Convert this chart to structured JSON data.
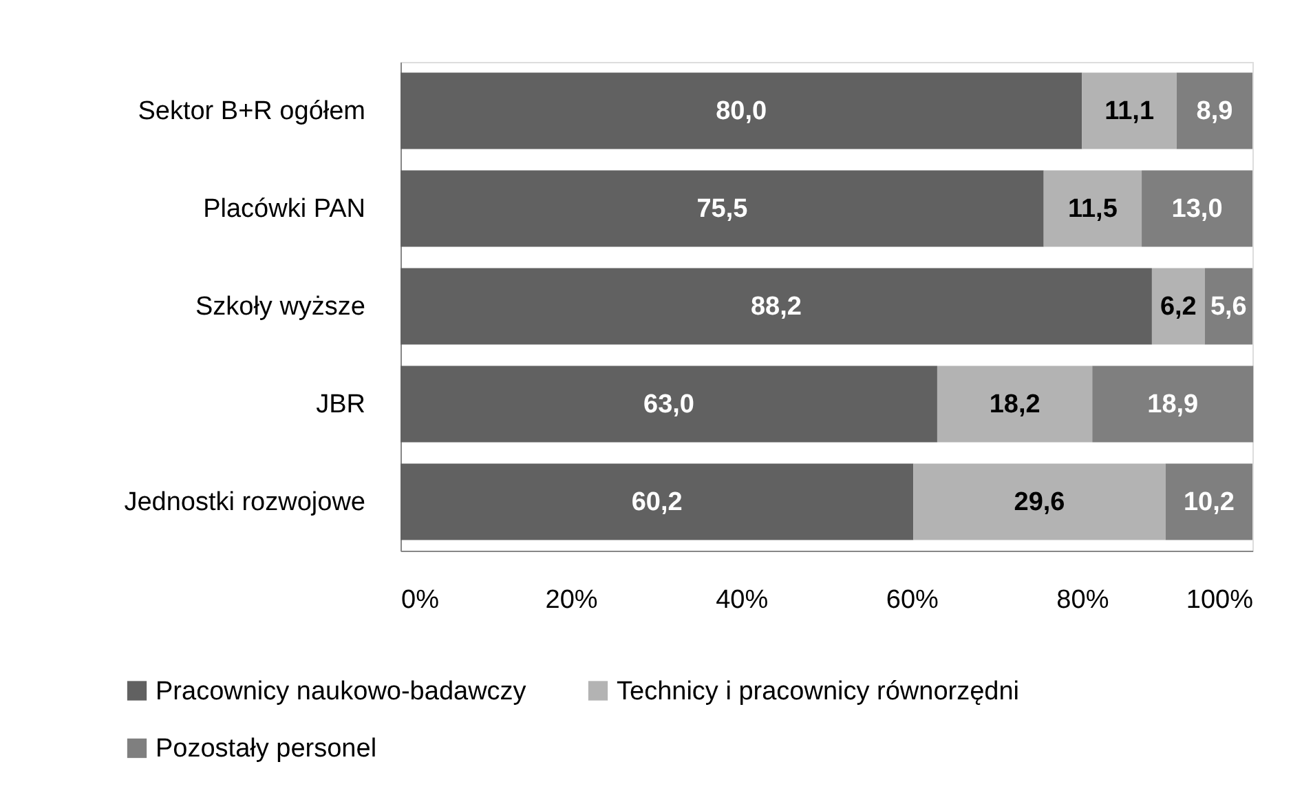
{
  "chart_data": {
    "type": "bar",
    "orientation": "horizontal",
    "stacked": true,
    "categories": [
      "Sektor B+R ogółem",
      "Placówki PAN",
      "Szkoły wyższe",
      "JBR",
      "Jednostki rozwojowe"
    ],
    "series": [
      {
        "name": "Pracownicy naukowo-badawczy",
        "color": "#616161",
        "values": [
          80.0,
          75.5,
          88.2,
          63.0,
          60.2
        ],
        "value_labels": [
          "80,0",
          "75,5",
          "88,2",
          "63,0",
          "60,2"
        ]
      },
      {
        "name": "Technicy i pracownicy równorzędni",
        "color": "#b3b3b3",
        "values": [
          11.1,
          11.5,
          6.2,
          18.2,
          29.6
        ],
        "value_labels": [
          "11,1",
          "11,5",
          "6,2",
          "18,2",
          "29,6"
        ]
      },
      {
        "name": "Pozostały personel",
        "color": "#7f7f7f",
        "values": [
          8.9,
          13.0,
          5.6,
          18.9,
          10.2
        ],
        "value_labels": [
          "8,9",
          "13,0",
          "5,6",
          "18,9",
          "10,2"
        ]
      }
    ],
    "xlim": [
      0,
      100
    ],
    "xticks": [
      {
        "value": 0,
        "label": "0%"
      },
      {
        "value": 20,
        "label": "20%"
      },
      {
        "value": 40,
        "label": "40%"
      },
      {
        "value": 60,
        "label": "60%"
      },
      {
        "value": 80,
        "label": "80%"
      },
      {
        "value": 100,
        "label": "100%"
      }
    ],
    "legend": "bottom",
    "grid": false
  }
}
